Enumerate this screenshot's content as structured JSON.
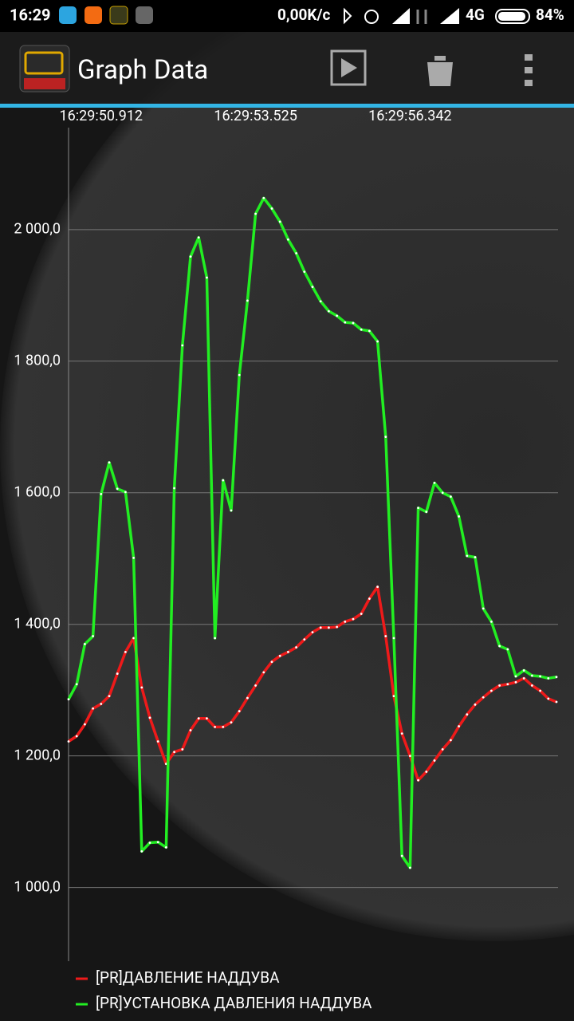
{
  "status_bar": {
    "time": "16:29",
    "speed": "0,00K/c",
    "network": "4G",
    "battery": "84%"
  },
  "app_bar": {
    "title": "Graph Data"
  },
  "chart_data": {
    "type": "line",
    "categories": [
      null,
      null,
      null,
      null,
      "16:29:50.912",
      null,
      null,
      null,
      null,
      null,
      null,
      null,
      null,
      null,
      null,
      null,
      null,
      null,
      null,
      null,
      null,
      null,
      null,
      "16:29:53.525",
      null,
      null,
      null,
      null,
      null,
      null,
      null,
      null,
      null,
      null,
      null,
      null,
      null,
      null,
      null,
      null,
      null,
      null,
      "16:29:56.342",
      null,
      null,
      null,
      null,
      null,
      null,
      null,
      null,
      null,
      null,
      null,
      null,
      null,
      null,
      null,
      null,
      null,
      null
    ],
    "series": [
      {
        "name": "[PR]ДАВЛЕНИЕ НАДДУВА",
        "color": "#ee1a1a",
        "values": [
          1222,
          1230,
          1248,
          1272,
          1279,
          1291,
          1325,
          1358,
          1379,
          1304,
          1258,
          1222,
          1188,
          1206,
          1210,
          1239,
          1257,
          1257,
          1244,
          1244,
          1251,
          1268,
          1288,
          1307,
          1327,
          1343,
          1352,
          1358,
          1365,
          1377,
          1388,
          1395,
          1395,
          1396,
          1404,
          1408,
          1416,
          1439,
          1457,
          1382,
          1291,
          1234,
          1200,
          1163,
          1176,
          1193,
          1210,
          1224,
          1245,
          1263,
          1278,
          1289,
          1299,
          1307,
          1309,
          1312,
          1318,
          1307,
          1299,
          1287,
          1282
        ]
      },
      {
        "name": "[PR]УСТАНОВКА ДАВЛЕНИЯ НАДДУВА",
        "color": "#22ee22",
        "values": [
          1286,
          1309,
          1370,
          1382,
          1598,
          1646,
          1606,
          1601,
          1501,
          1055,
          1068,
          1069,
          1061,
          1607,
          1824,
          1959,
          1988,
          1927,
          1379,
          1619,
          1573,
          1779,
          1892,
          2024,
          2048,
          2032,
          2012,
          1985,
          1964,
          1936,
          1913,
          1891,
          1876,
          1869,
          1859,
          1858,
          1848,
          1846,
          1830,
          1685,
          1379,
          1048,
          1030,
          1577,
          1571,
          1615,
          1600,
          1594,
          1564,
          1504,
          1502,
          1424,
          1404,
          1367,
          1362,
          1321,
          1330,
          1322,
          1321,
          1318,
          1320
        ]
      }
    ],
    "ylim": [
      888,
      2155
    ],
    "yticks": [
      {
        "value": 1000,
        "label": "1 000,0"
      },
      {
        "value": 1200,
        "label": "1 200,0"
      },
      {
        "value": 1400,
        "label": "1 400,0"
      },
      {
        "value": 1600,
        "label": "1 600,0"
      },
      {
        "value": 1800,
        "label": "1 800,0"
      },
      {
        "value": 2000,
        "label": "2 000,0"
      }
    ],
    "grid": true,
    "legend": "bottom-left"
  }
}
